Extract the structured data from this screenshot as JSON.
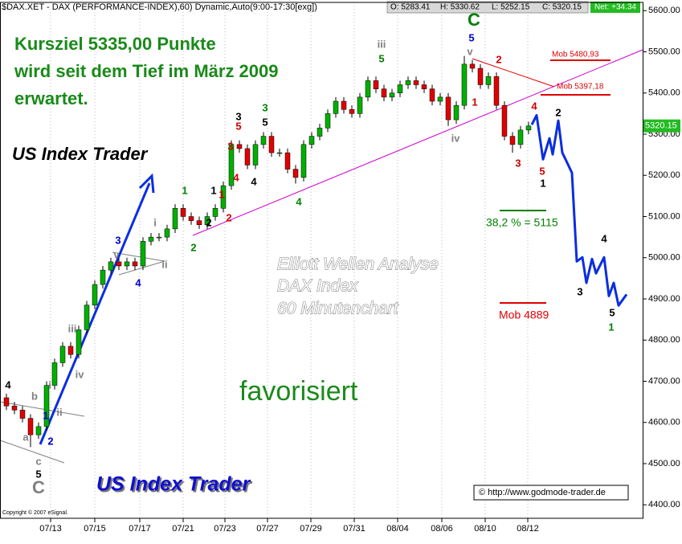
{
  "chart_data": {
    "type": "candlestick",
    "title": "$DAX.XET - DAX (PERFORMANCE-INDEX),60) Dynamic,Auto(9:00-17:30[exg])",
    "quote": [
      "O: 5283.41",
      "H: 5330.62",
      "L: 5252.15",
      "C: 5320.15"
    ],
    "net": "Net: +34.34",
    "up_color": "#00b000",
    "down_color": "#e00000",
    "open": [
      4660,
      4640,
      4630,
      4610,
      4570,
      4590,
      4690,
      4745,
      4785,
      4765,
      4825,
      4885,
      4935,
      4970,
      4990,
      4980,
      4990,
      4980,
      5040,
      5050,
      5050,
      5070,
      5120,
      5100,
      5090,
      5080,
      5100,
      5120,
      5175,
      5275,
      5265,
      5225,
      5275,
      5295,
      5255,
      5255,
      5215,
      5195,
      5275,
      5295,
      5315,
      5350,
      5380,
      5360,
      5350,
      5390,
      5430,
      5410,
      5390,
      5400,
      5420,
      5430,
      5420,
      5410,
      5380,
      5390,
      5335,
      5370,
      5470,
      5460,
      5420,
      5440,
      5370,
      5295,
      5275,
      5310
    ],
    "high": [
      4670,
      4650,
      4640,
      4620,
      4600,
      4700,
      4755,
      4795,
      4795,
      4835,
      4895,
      4945,
      4980,
      5000,
      5000,
      5000,
      5000,
      5050,
      5060,
      5060,
      5080,
      5130,
      5130,
      5110,
      5100,
      5110,
      5130,
      5185,
      5285,
      5285,
      5275,
      5285,
      5305,
      5305,
      5265,
      5265,
      5225,
      5285,
      5305,
      5325,
      5360,
      5390,
      5390,
      5370,
      5400,
      5440,
      5440,
      5420,
      5410,
      5430,
      5440,
      5440,
      5430,
      5420,
      5400,
      5400,
      5380,
      5490,
      5480,
      5470,
      5450,
      5450,
      5380,
      5305,
      5320,
      5330
    ],
    "low": [
      4630,
      4620,
      4600,
      4540,
      4560,
      4580,
      4680,
      4735,
      4755,
      4755,
      4815,
      4875,
      4925,
      4960,
      4970,
      4970,
      4970,
      4970,
      5030,
      5040,
      5040,
      5060,
      5090,
      5080,
      5070,
      5070,
      5090,
      5110,
      5165,
      5255,
      5215,
      5215,
      5265,
      5245,
      5245,
      5205,
      5180,
      5185,
      5265,
      5285,
      5305,
      5340,
      5350,
      5340,
      5340,
      5380,
      5400,
      5380,
      5380,
      5390,
      5410,
      5410,
      5400,
      5370,
      5370,
      5320,
      5325,
      5360,
      5450,
      5410,
      5410,
      5360,
      5285,
      5255,
      5265,
      5300
    ],
    "close": [
      4640,
      4630,
      4610,
      4570,
      4590,
      4690,
      4745,
      4785,
      4765,
      4825,
      4885,
      4935,
      4970,
      4990,
      4980,
      4990,
      4980,
      5040,
      5050,
      5050,
      5070,
      5120,
      5100,
      5090,
      5080,
      5100,
      5120,
      5175,
      5275,
      5265,
      5225,
      5275,
      5295,
      5255,
      5255,
      5215,
      5195,
      5275,
      5295,
      5315,
      5350,
      5380,
      5360,
      5350,
      5390,
      5430,
      5410,
      5390,
      5400,
      5420,
      5430,
      5420,
      5410,
      5380,
      5390,
      5335,
      5370,
      5470,
      5460,
      5420,
      5440,
      5370,
      5295,
      5275,
      5310,
      5320
    ],
    "projection": {
      "color": "#0a2ee0",
      "x": [
        65.4,
        66,
        66.8,
        67.6,
        68,
        68.7,
        69.2,
        69.7,
        70.4,
        71,
        71.7,
        72.2,
        72.9,
        73.4,
        74.4,
        75,
        75.6,
        76.2,
        77.2
      ],
      "values": [
        5323,
        5346,
        5239,
        5290,
        5251,
        5333,
        5255,
        5235,
        5206,
        4991,
        5001,
        4939,
        4997,
        4962,
        5001,
        4907,
        4939,
        4884,
        4911
      ]
    },
    "last_price": 5320.15,
    "xlim": [
      -0.8,
      79.2
    ],
    "xticks": [
      {
        "value": 5.5,
        "label": "07/13"
      },
      {
        "value": 11,
        "label": "07/15"
      },
      {
        "value": 16.6,
        "label": "07/17"
      },
      {
        "value": 22,
        "label": "07/21"
      },
      {
        "value": 27.2,
        "label": "07/23"
      },
      {
        "value": 32.5,
        "label": "07/27"
      },
      {
        "value": 37.9,
        "label": "07/29"
      },
      {
        "value": 43.3,
        "label": "07/31"
      },
      {
        "value": 48.7,
        "label": "08/04"
      },
      {
        "value": 54.2,
        "label": "08/06"
      },
      {
        "value": 59.6,
        "label": "08/10"
      },
      {
        "value": 64.9,
        "label": "08/12"
      }
    ],
    "ylim": [
      4370,
      5620
    ],
    "yticks": [
      {
        "value": 4400,
        "label": "4400.00"
      },
      {
        "value": 4500,
        "label": "4500.00"
      },
      {
        "value": 4600,
        "label": "4600.00"
      },
      {
        "value": 4700,
        "label": "4700.00"
      },
      {
        "value": 4800,
        "label": "4800.00"
      },
      {
        "value": 4900,
        "label": "4900.00"
      },
      {
        "value": 5000,
        "label": "5000.00"
      },
      {
        "value": 5100,
        "label": "5100.00"
      },
      {
        "value": 5200,
        "label": "5200.00"
      },
      {
        "value": 5300,
        "label": "5300.00"
      },
      {
        "value": 5400,
        "label": "5400.00"
      },
      {
        "value": 5500,
        "label": "5500.00"
      },
      {
        "value": 5600,
        "label": "5600.00"
      }
    ],
    "grid": true,
    "annotations": {
      "headline": [
        "Kursziel 5335,00 Punkte",
        "wird seit dem Tief im März 2009",
        "erwartet."
      ],
      "brand": "US Index Trader",
      "brand_bottom": "US Index Trader",
      "analysis": [
        "Elliott Wellen Analyse",
        "DAX Index",
        "60 Minutenchart"
      ],
      "status": "favorisiert",
      "fib": "38,2 % = 5115",
      "mob_low": "Mob 4889",
      "mob_high": "Mob 5480,93",
      "mob_mid": "Mob 5397,18",
      "source": "© http://www.godmode-trader.de",
      "copyright": "Copyright © 2007 eSignal."
    },
    "wave_labels": [
      {
        "text": "4",
        "color": "#000000"
      },
      {
        "text": "b",
        "color": "#808080"
      },
      {
        "text": "a",
        "color": "#808080"
      },
      {
        "text": "c",
        "color": "#808080"
      },
      {
        "text": "5",
        "color": "#000000"
      },
      {
        "text": "C",
        "color": "#808080"
      },
      {
        "text": "1",
        "color": "#0000cc"
      },
      {
        "text": "ii",
        "color": "#808080"
      },
      {
        "text": "i",
        "color": "#808080"
      },
      {
        "text": "2",
        "color": "#0000cc"
      },
      {
        "text": "iii",
        "color": "#808080"
      },
      {
        "text": "iv",
        "color": "#808080"
      },
      {
        "text": "3",
        "color": "#0000cc"
      },
      {
        "text": "v",
        "color": "#808080"
      },
      {
        "text": "4",
        "color": "#0000cc"
      },
      {
        "text": "ii",
        "color": "#808080"
      },
      {
        "text": "i",
        "color": "#808080"
      },
      {
        "text": "1",
        "color": "#008000"
      },
      {
        "text": "2",
        "color": "#008000"
      },
      {
        "text": "1",
        "color": "#000000"
      },
      {
        "text": "2",
        "color": "#000000"
      },
      {
        "text": "1",
        "color": "#cc0000"
      },
      {
        "text": "2",
        "color": "#cc0000"
      },
      {
        "text": "3",
        "color": "#cc0000"
      },
      {
        "text": "4",
        "color": "#cc0000"
      },
      {
        "text": "3",
        "color": "#000000"
      },
      {
        "text": "5",
        "color": "#cc0000"
      },
      {
        "text": "4",
        "color": "#000000"
      },
      {
        "text": "3",
        "color": "#008000"
      },
      {
        "text": "5",
        "color": "#000000"
      },
      {
        "text": "4",
        "color": "#008000"
      },
      {
        "text": "iii",
        "color": "#808080"
      },
      {
        "text": "5",
        "color": "#008000"
      },
      {
        "text": "C",
        "color": "#008000"
      },
      {
        "text": "5",
        "color": "#0000cc"
      },
      {
        "text": "v",
        "color": "#808080"
      },
      {
        "text": "1",
        "color": "#cc0000"
      },
      {
        "text": "2",
        "color": "#cc0000"
      },
      {
        "text": "iv",
        "color": "#808080"
      },
      {
        "text": "3",
        "color": "#cc0000"
      },
      {
        "text": "4",
        "color": "#cc0000"
      },
      {
        "text": "5",
        "color": "#cc0000"
      },
      {
        "text": "1",
        "color": "#000000"
      },
      {
        "text": "2",
        "color": "#000000"
      },
      {
        "text": "3",
        "color": "#000000"
      },
      {
        "text": "4",
        "color": "#000000"
      },
      {
        "text": "5",
        "color": "#000000"
      },
      {
        "text": "1",
        "color": "#008000"
      }
    ]
  }
}
